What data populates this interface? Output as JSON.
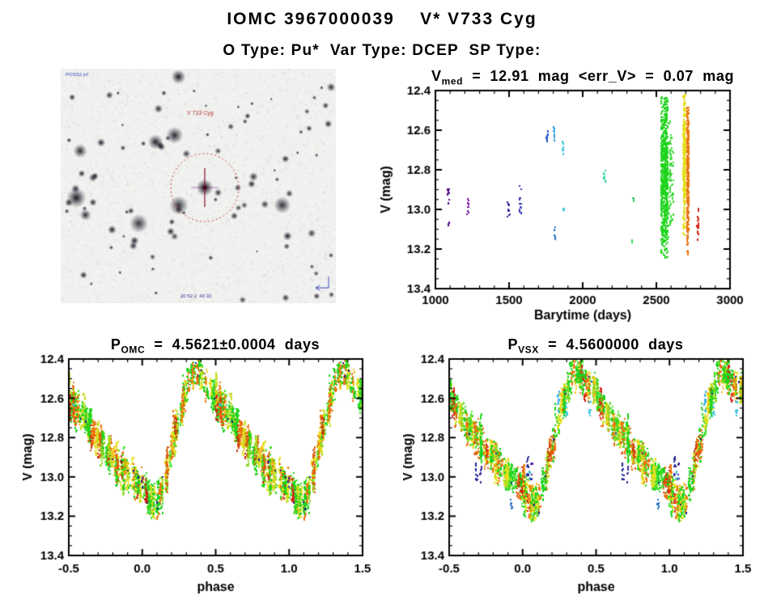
{
  "page": {
    "title": "IOMC 3967000039    V* V733 Cyg",
    "subtitle": "O Type: Pu*  Var Type: DCEP  SP Type:"
  },
  "finder": {
    "source_label": "POSS2 inf",
    "target_label": "V 733 Cyg",
    "coords_label": "20 52 2  40 32",
    "circle_color": "#cc3838",
    "crosshair_color": "#8a0a30",
    "label_color": "#b03434",
    "annot_color": "#3a48b8"
  },
  "chart_data": [
    {
      "id": "barytime",
      "type": "scatter",
      "title_parts": {
        "pre": "V",
        "sub": "med",
        "post": "  =  12.91  mag  <err_V>  =  0.07  mag"
      },
      "xlabel": "Barytime (days)",
      "ylabel": "V (mag)",
      "xlim": [
        1000,
        3000
      ],
      "ylim": [
        12.4,
        13.4
      ],
      "xticks": [
        1000,
        1500,
        2000,
        2500,
        3000
      ],
      "xtick_labels": [
        "1000",
        "1500",
        "2000",
        "2500",
        "3000"
      ],
      "yticks": [
        12.4,
        12.6,
        12.8,
        13.0,
        13.2,
        13.4
      ],
      "ytick_labels": [
        "12.4",
        "12.6",
        "12.8",
        "13.0",
        "13.2",
        "13.4"
      ],
      "xminor": 100,
      "yminor": 0.05,
      "grid": false,
      "seed": 7,
      "clusters": [
        {
          "t": 1090,
          "w": 16,
          "m0": 12.87,
          "m1": 12.97,
          "n": 9,
          "c": "#500a8c"
        },
        {
          "t": 1091,
          "w": 10,
          "m0": 13.05,
          "m1": 13.09,
          "n": 4,
          "c": "#500a8c"
        },
        {
          "t": 1218,
          "w": 18,
          "m0": 12.91,
          "m1": 13.03,
          "n": 12,
          "c": "#70089a"
        },
        {
          "t": 1498,
          "w": 16,
          "m0": 12.93,
          "m1": 13.05,
          "n": 10,
          "c": "#30289c"
        },
        {
          "t": 1576,
          "w": 18,
          "m0": 12.85,
          "m1": 13.02,
          "n": 13,
          "c": "#3232b6"
        },
        {
          "t": 1758,
          "w": 13,
          "m0": 12.6,
          "m1": 12.68,
          "n": 11,
          "c": "#2356c6"
        },
        {
          "t": 1806,
          "w": 11,
          "m0": 12.56,
          "m1": 12.65,
          "n": 10,
          "c": "#2f9ade"
        },
        {
          "t": 1812,
          "w": 9,
          "m0": 13.08,
          "m1": 13.17,
          "n": 7,
          "c": "#2574c8"
        },
        {
          "t": 1866,
          "w": 9,
          "m0": 12.64,
          "m1": 12.72,
          "n": 8,
          "c": "#42c6da"
        },
        {
          "t": 1872,
          "w": 7,
          "m0": 12.99,
          "m1": 13.02,
          "n": 4,
          "c": "#42c6da"
        },
        {
          "t": 2150,
          "w": 11,
          "m0": 12.79,
          "m1": 12.87,
          "n": 9,
          "c": "#2ed8a4"
        },
        {
          "t": 2344,
          "w": 11,
          "m0": 12.92,
          "m1": 12.97,
          "n": 7,
          "c": "#2ed868"
        },
        {
          "t": 2336,
          "w": 5,
          "m0": 13.14,
          "m1": 13.17,
          "n": 2,
          "c": "#2ed868"
        },
        {
          "t": 2556,
          "w": 48,
          "m0": 12.43,
          "m1": 13.22,
          "n": 680,
          "c": "#21d41e"
        },
        {
          "t": 2596,
          "w": 14,
          "m0": 12.52,
          "m1": 13.1,
          "n": 70,
          "c": "#38dc30"
        },
        {
          "t": 2560,
          "w": 30,
          "m0": 13.22,
          "m1": 13.26,
          "n": 6,
          "c": "#21d41e"
        },
        {
          "t": 2614,
          "w": 10,
          "m0": 12.6,
          "m1": 13.05,
          "n": 14,
          "c": "#2ed82e"
        },
        {
          "t": 2690,
          "w": 15,
          "m0": 12.42,
          "m1": 13.13,
          "n": 300,
          "c": "#e4de1c"
        },
        {
          "t": 2714,
          "w": 15,
          "m0": 12.47,
          "m1": 13.18,
          "n": 310,
          "c": "#ec7410"
        },
        {
          "t": 2712,
          "w": 8,
          "m0": 13.18,
          "m1": 13.23,
          "n": 4,
          "c": "#ec7410"
        },
        {
          "t": 2782,
          "w": 11,
          "m0": 12.99,
          "m1": 13.17,
          "n": 20,
          "c": "#d42414"
        }
      ]
    },
    {
      "id": "omc",
      "type": "scatter-phase",
      "title_parts": {
        "pre": "P",
        "sub": "OMC",
        "post": "  =  4.5621±0.0004  days"
      },
      "xlabel": "phase",
      "ylabel": "V (mag)",
      "xlim": [
        -0.5,
        1.5
      ],
      "ylim": [
        12.4,
        13.4
      ],
      "xticks": [
        -0.5,
        0.0,
        0.5,
        1.0,
        1.5
      ],
      "xtick_labels": [
        "-0.5",
        "0.0",
        "0.5",
        "1.0",
        "1.5"
      ],
      "yticks": [
        12.4,
        12.6,
        12.8,
        13.0,
        13.2,
        13.4
      ],
      "ytick_labels": [
        "12.4",
        "12.6",
        "12.8",
        "13.0",
        "13.2",
        "13.4"
      ],
      "xminor": 0.1,
      "yminor": 0.05,
      "grid": false,
      "seed": 13,
      "n_columns": 200,
      "col_pts": [
        7,
        24
      ],
      "mean_curve": [
        [
          0.0,
          13.04
        ],
        [
          0.04,
          13.1
        ],
        [
          0.08,
          13.14
        ],
        [
          0.11,
          13.14
        ],
        [
          0.14,
          13.05
        ],
        [
          0.18,
          12.92
        ],
        [
          0.22,
          12.78
        ],
        [
          0.26,
          12.67
        ],
        [
          0.3,
          12.56
        ],
        [
          0.34,
          12.48
        ],
        [
          0.37,
          12.46
        ],
        [
          0.4,
          12.48
        ],
        [
          0.44,
          12.52
        ],
        [
          0.48,
          12.57
        ],
        [
          0.52,
          12.62
        ],
        [
          0.56,
          12.66
        ],
        [
          0.6,
          12.7
        ],
        [
          0.64,
          12.74
        ],
        [
          0.68,
          12.78
        ],
        [
          0.72,
          12.82
        ],
        [
          0.76,
          12.86
        ],
        [
          0.8,
          12.9
        ],
        [
          0.84,
          12.94
        ],
        [
          0.88,
          12.97
        ],
        [
          0.92,
          13.0
        ],
        [
          0.96,
          13.02
        ],
        [
          1.0,
          13.04
        ]
      ],
      "palette": [
        {
          "c": "#21d41e",
          "w": 30
        },
        {
          "c": "#45e22c",
          "w": 10
        },
        {
          "c": "#8fd922",
          "w": 5
        },
        {
          "c": "#c9de1e",
          "w": 7
        },
        {
          "c": "#e6df1d",
          "w": 15
        },
        {
          "c": "#f0c11a",
          "w": 5
        },
        {
          "c": "#ec7410",
          "w": 16
        },
        {
          "c": "#dd5a0e",
          "w": 6
        },
        {
          "c": "#c63c0c",
          "w": 4
        },
        {
          "c": "#d42414",
          "w": 2
        }
      ],
      "random_singles": {
        "n": 18,
        "color": "#1c2090",
        "sigma": 0.055
      },
      "specials": [
        {
          "p": 0.53,
          "m": 12.62,
          "h": 0.02,
          "n": 3,
          "c": "#2ec8b0"
        }
      ]
    },
    {
      "id": "vsx",
      "type": "scatter-phase",
      "title_parts": {
        "pre": "P",
        "sub": "VSX",
        "post": "  =  4.5600000  days"
      },
      "xlabel": "phase",
      "ylabel": "V (mag)",
      "xlim": [
        -0.5,
        1.5
      ],
      "ylim": [
        12.4,
        13.4
      ],
      "xticks": [
        -0.5,
        0.0,
        0.5,
        1.0,
        1.5
      ],
      "xtick_labels": [
        "-0.5",
        "0.0",
        "0.5",
        "1.0",
        "1.5"
      ],
      "yticks": [
        12.4,
        12.6,
        12.8,
        13.0,
        13.2,
        13.4
      ],
      "ytick_labels": [
        "12.4",
        "12.6",
        "12.8",
        "13.0",
        "13.2",
        "13.4"
      ],
      "xminor": 0.1,
      "yminor": 0.05,
      "grid": false,
      "seed": 29,
      "n_columns": 195,
      "col_pts": [
        7,
        24
      ],
      "mean_curve": [
        [
          0.0,
          13.04
        ],
        [
          0.04,
          13.1
        ],
        [
          0.08,
          13.14
        ],
        [
          0.11,
          13.14
        ],
        [
          0.14,
          13.05
        ],
        [
          0.18,
          12.92
        ],
        [
          0.22,
          12.78
        ],
        [
          0.26,
          12.67
        ],
        [
          0.3,
          12.56
        ],
        [
          0.34,
          12.48
        ],
        [
          0.37,
          12.46
        ],
        [
          0.4,
          12.48
        ],
        [
          0.44,
          12.52
        ],
        [
          0.48,
          12.57
        ],
        [
          0.52,
          12.62
        ],
        [
          0.56,
          12.66
        ],
        [
          0.6,
          12.7
        ],
        [
          0.64,
          12.74
        ],
        [
          0.68,
          12.78
        ],
        [
          0.72,
          12.82
        ],
        [
          0.76,
          12.86
        ],
        [
          0.8,
          12.9
        ],
        [
          0.84,
          12.94
        ],
        [
          0.88,
          12.97
        ],
        [
          0.92,
          13.0
        ],
        [
          0.96,
          13.02
        ],
        [
          1.0,
          13.04
        ]
      ],
      "palette": [
        {
          "c": "#21d41e",
          "w": 30
        },
        {
          "c": "#45e22c",
          "w": 10
        },
        {
          "c": "#8fd922",
          "w": 5
        },
        {
          "c": "#c9de1e",
          "w": 7
        },
        {
          "c": "#e6df1d",
          "w": 15
        },
        {
          "c": "#f0c11a",
          "w": 5
        },
        {
          "c": "#ec7410",
          "w": 16
        },
        {
          "c": "#dd5a0e",
          "w": 6
        },
        {
          "c": "#c63c0c",
          "w": 4
        },
        {
          "c": "#d42414",
          "w": 2
        }
      ],
      "random_singles": {
        "n": 10,
        "color": "#1c2090",
        "sigma": 0.05
      },
      "specials": [
        {
          "p": 0.245,
          "m": 12.61,
          "h": 0.055,
          "n": 14,
          "c": "#38b0ea"
        },
        {
          "p": 0.3,
          "m": 12.67,
          "h": 0.045,
          "n": 8,
          "c": "#30c8d2"
        },
        {
          "p": 0.455,
          "m": 12.66,
          "h": 0.045,
          "n": 8,
          "c": "#36c2dc"
        },
        {
          "p": 0.685,
          "m": 12.97,
          "h": 0.06,
          "n": 11,
          "c": "#1c2096"
        },
        {
          "p": 0.715,
          "m": 12.99,
          "h": 0.045,
          "n": 6,
          "c": "#3a309c"
        },
        {
          "p": 0.035,
          "m": 12.93,
          "h": 0.06,
          "n": 12,
          "c": "#282a98"
        },
        {
          "p": 0.062,
          "m": 12.97,
          "h": 0.045,
          "n": 6,
          "c": "#46239c"
        },
        {
          "p": 0.925,
          "m": 13.12,
          "h": 0.045,
          "n": 7,
          "c": "#2572c8"
        },
        {
          "p": 0.045,
          "m": 12.99,
          "h": 0.02,
          "n": 4,
          "c": "#38b8d8"
        }
      ]
    }
  ]
}
